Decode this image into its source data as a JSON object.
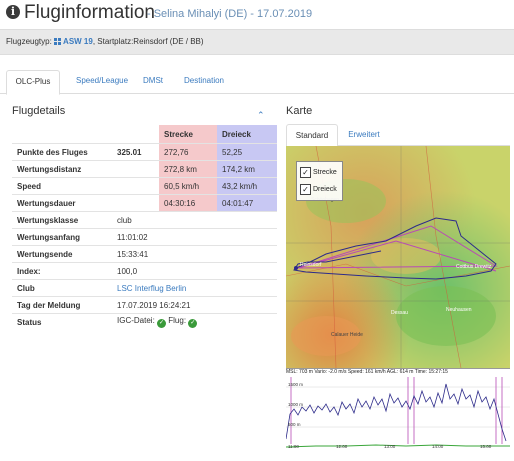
{
  "header": {
    "title": "Fluginformation",
    "subtitle": "- Selina Mihalyi (DE) - 17.07.2019"
  },
  "subbar": {
    "aircraft_label": "Flugzeugtyp:",
    "aircraft": "ASW 19",
    "startplace": ", Startplatz:Reinsdorf (DE / BB)"
  },
  "tabs": [
    "OLC-Plus",
    "Speed/League",
    "DMSt",
    "Destination"
  ],
  "details": {
    "title": "Flugdetails",
    "col_a": "Strecke",
    "col_b": "Dreieck",
    "rows": [
      {
        "label": "Punkte des Fluges",
        "value": "325.01",
        "a": "272,76",
        "b": "52,25"
      },
      {
        "label": "Wertungsdistanz",
        "value": "",
        "a": "272,8 km",
        "b": "174,2 km"
      },
      {
        "label": "Speed",
        "value": "",
        "a": "60,5 km/h",
        "b": "43,2 km/h"
      },
      {
        "label": "Wertungsdauer",
        "value": "",
        "a": "04:30:16",
        "b": "04:01:47"
      }
    ],
    "rows2": [
      {
        "label": "Wertungsklasse",
        "value": "club"
      },
      {
        "label": "Wertungsanfang",
        "value": "11:01:02"
      },
      {
        "label": "Wertungsende",
        "value": "15:33:41"
      },
      {
        "label": "Index:",
        "value": "100,0"
      },
      {
        "label": "Club",
        "value": "LSC Interflug Berlin"
      },
      {
        "label": "Tag der Meldung",
        "value": "17.07.2019 16:24:21"
      }
    ],
    "status_label": "Status",
    "status_igc": "IGC-Datei:",
    "status_flug": "Flug:"
  },
  "map": {
    "title": "Karte",
    "tab_standard": "Standard",
    "tab_extended": "Erweitert",
    "legend": [
      "Strecke",
      "Dreieck"
    ],
    "places": [
      "Schönhagen",
      "Reinsdorf",
      "Cottbus Drewitz",
      "Neuhausen",
      "Dessau",
      "Calauer Heide"
    ]
  },
  "barogram": {
    "readout": "MSL: 703 m Vario: -2.0 m/s Speed: 161 km/h AGL: 614 m Time: 15:27:15",
    "y_ticks": [
      "1500 m",
      "1000 m",
      "500 m"
    ],
    "x_ticks": [
      "11:00",
      "12:00",
      "13:00",
      "14:00",
      "15:00"
    ]
  },
  "colors": {
    "link": "#3b7bbf",
    "strecke": "#f5c9cb",
    "dreieck": "#c8c8f3",
    "track": "#2d2b8a",
    "task": "#b84bb5"
  }
}
